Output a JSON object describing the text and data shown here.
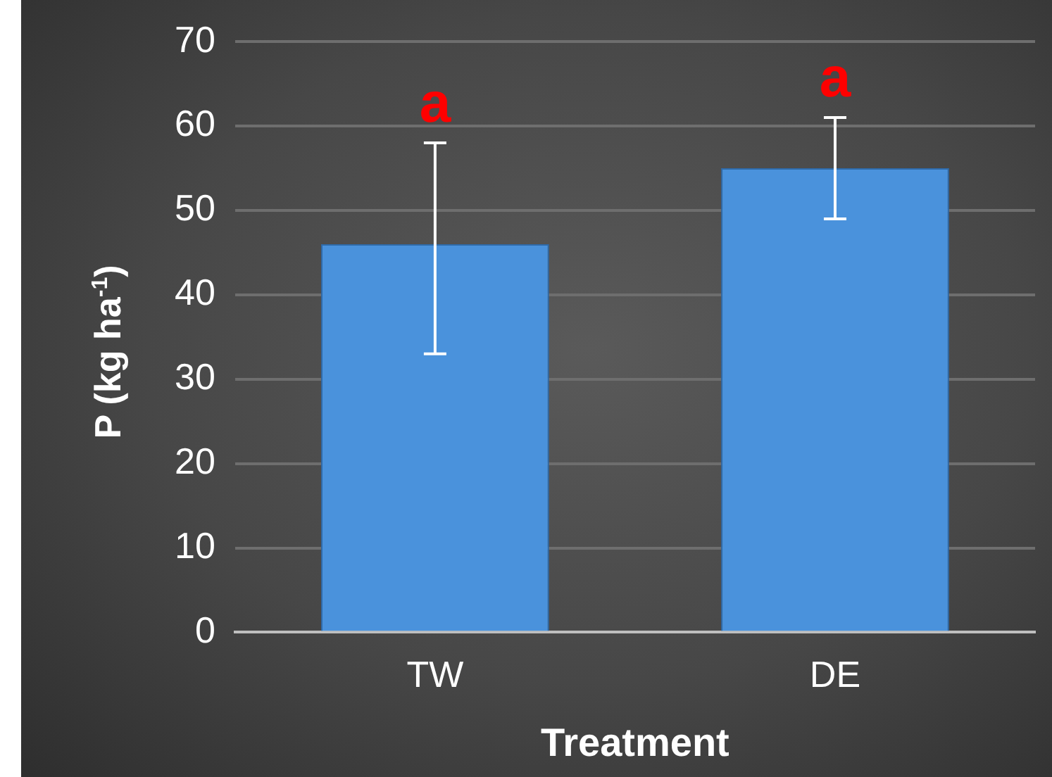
{
  "chart_data": {
    "type": "bar",
    "xlabel": "Treatment",
    "ylabel": "P (kg ha$^{-1}$)",
    "categories": [
      "TW",
      "DE"
    ],
    "values": [
      46,
      55
    ],
    "color": "#4a92dc",
    "errors": [
      [
        33,
        58
      ],
      [
        49,
        61
      ]
    ],
    "annotations": [
      "a",
      "a"
    ],
    "ylim": [
      0,
      70
    ],
    "yticks": [
      0,
      10,
      20,
      30,
      40,
      50,
      60,
      70
    ],
    "grid": "y"
  }
}
